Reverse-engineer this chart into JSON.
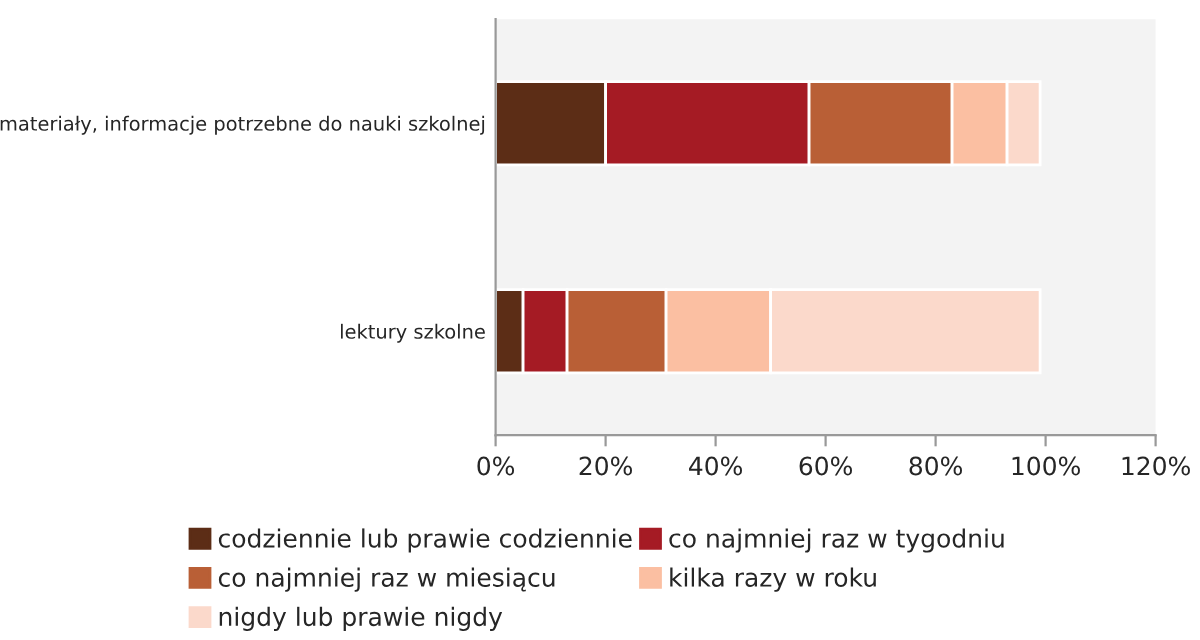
{
  "chart_data": {
    "type": "bar",
    "orientation": "horizontal",
    "stacked": true,
    "categories": [
      "materiały, informacje potrzebne do nauki szkolnej",
      "lektury szkolne"
    ],
    "series": [
      {
        "name": "codziennie lub prawie codziennie",
        "color": "#5c2d16",
        "values": [
          20,
          5
        ]
      },
      {
        "name": "co najmniej raz w tygodniu",
        "color": "#a51b24",
        "values": [
          37,
          8
        ]
      },
      {
        "name": "co najmniej raz w miesiącu",
        "color": "#b95f36",
        "values": [
          26,
          18
        ]
      },
      {
        "name": "kilka razy w roku",
        "color": "#fbbfa2",
        "values": [
          10,
          19
        ]
      },
      {
        "name": "nigdy lub prawie nigdy",
        "color": "#fbd9cb",
        "values": [
          6,
          49
        ]
      }
    ],
    "xlim": [
      0,
      120
    ],
    "xticks": [
      {
        "value": 0,
        "label": "0%"
      },
      {
        "value": 20,
        "label": "20%"
      },
      {
        "value": 40,
        "label": "40%"
      },
      {
        "value": 60,
        "label": "60%"
      },
      {
        "value": 80,
        "label": "80%"
      },
      {
        "value": 100,
        "label": "100%"
      },
      {
        "value": 120,
        "label": "120%"
      }
    ],
    "grid": false,
    "legend": "bottom"
  }
}
